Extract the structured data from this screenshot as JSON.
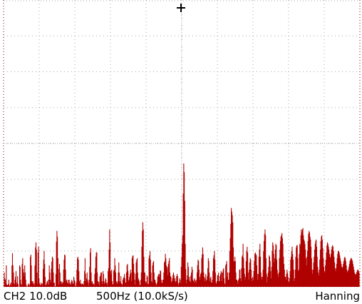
{
  "status_bar": {
    "channel_scale": "CH2 10.0dB",
    "span_rate": "500Hz (10.0kS/s)",
    "window": "Hanning"
  },
  "colors": {
    "background": "#ffffff",
    "grid": "#a8a8a8",
    "spectrum": "#b00000",
    "trigger_marker": "#000000"
  },
  "trigger_marker_icon": "trigger-position-cross-icon",
  "chart_data": {
    "type": "bar",
    "description_source": "FFT spectrum display",
    "values": [
      20,
      12,
      10,
      5,
      30,
      3,
      2,
      3,
      4,
      10,
      2,
      1,
      4,
      6,
      2,
      30,
      47,
      30,
      20,
      5,
      3,
      10,
      14,
      22,
      3,
      6,
      15,
      4,
      0,
      0,
      30,
      28,
      10,
      4,
      2,
      32,
      40,
      25,
      20,
      15,
      30,
      20,
      10,
      3,
      0,
      0,
      2,
      5,
      3,
      0,
      4,
      42,
      45,
      30,
      8,
      6,
      8,
      3,
      5,
      2,
      30,
      55,
      62,
      52,
      20,
      4,
      48,
      56,
      12,
      5,
      2,
      3,
      6,
      4,
      2,
      5,
      25,
      38,
      50,
      32,
      14,
      3,
      2,
      6,
      8,
      4,
      10,
      3,
      30,
      20,
      10,
      6,
      25,
      35,
      42,
      40,
      20,
      5,
      6,
      0,
      1,
      18,
      63,
      78,
      70,
      40,
      25,
      3,
      32,
      20,
      6,
      8,
      4,
      7,
      4,
      6,
      24,
      38,
      45,
      44,
      24,
      8,
      10,
      6,
      5,
      10,
      4,
      10,
      6,
      4,
      3,
      7,
      10,
      8,
      4,
      5,
      14,
      10,
      8,
      2,
      0,
      6,
      24,
      40,
      42,
      38,
      22,
      8,
      5,
      10,
      4,
      3,
      5,
      4,
      4,
      2,
      8,
      22,
      40,
      18,
      8,
      12,
      20,
      10,
      6,
      2,
      10,
      28,
      48,
      54,
      20,
      6,
      8,
      3,
      5,
      4,
      2,
      18,
      26,
      42,
      48,
      48,
      20,
      8,
      4,
      7,
      2,
      14,
      16,
      20,
      20,
      8,
      4,
      22,
      18,
      8,
      4,
      6,
      12,
      10,
      5,
      2,
      6,
      22,
      26,
      52,
      80,
      62,
      22,
      18,
      24,
      8,
      3,
      4,
      22,
      24,
      40,
      30,
      20,
      8,
      6,
      4,
      8,
      20,
      34,
      20,
      8,
      5,
      15,
      5,
      4,
      2,
      10,
      12,
      14,
      18,
      12,
      6,
      6,
      20,
      30,
      32,
      22,
      8,
      10,
      14,
      18,
      24,
      20,
      8,
      40,
      43,
      44,
      32,
      20,
      10,
      3,
      18,
      34,
      38,
      40,
      20,
      12,
      10,
      8,
      2,
      3,
      10,
      20,
      56,
      78,
      90,
      80,
      42,
      20,
      20,
      8,
      5,
      6,
      16,
      14,
      4,
      4,
      40,
      44,
      50,
      38,
      20,
      8,
      6,
      30,
      34,
      36,
      20,
      10,
      10,
      6,
      2,
      4,
      6,
      14,
      16,
      18,
      14,
      18,
      23,
      22,
      10,
      5,
      6,
      10,
      10,
      20,
      34,
      36,
      46,
      40,
      30,
      25,
      28,
      16,
      32,
      36,
      40,
      20,
      15,
      14,
      6,
      8,
      12,
      17,
      20,
      16,
      8,
      12,
      6,
      8,
      15,
      18,
      15,
      5,
      2,
      6,
      12,
      10,
      5,
      28,
      42,
      60,
      72,
      130,
      172,
      160,
      120,
      60,
      25,
      5,
      10,
      16,
      34,
      28,
      10,
      14,
      8,
      6,
      16,
      20,
      28,
      24,
      10,
      8,
      6,
      12,
      10,
      8,
      5,
      10,
      20,
      30,
      38,
      36,
      24,
      14,
      10,
      18,
      20,
      40,
      45,
      55,
      46,
      20,
      14,
      8,
      12,
      18,
      8,
      10,
      15,
      26,
      40,
      36,
      20,
      8,
      12,
      14,
      6,
      6,
      10,
      22,
      40,
      44,
      50,
      38,
      20,
      6,
      4,
      8,
      16,
      16,
      20,
      8,
      8,
      15,
      18,
      22,
      20,
      8,
      20,
      24,
      26,
      12,
      5,
      3,
      30,
      32,
      36,
      14,
      20,
      10,
      10,
      20,
      50,
      68,
      88,
      110,
      105,
      100,
      90,
      55,
      35,
      36,
      42,
      36,
      20,
      10,
      10,
      8,
      4,
      10,
      12,
      24,
      24,
      12,
      8,
      26,
      42,
      44,
      60,
      40,
      26,
      18,
      10,
      14,
      36,
      50,
      56,
      48,
      20,
      10,
      24,
      34,
      40,
      38,
      24,
      12,
      8,
      14,
      10,
      22,
      36,
      46,
      48,
      46,
      44,
      30,
      18,
      10,
      18,
      42,
      52,
      60,
      42,
      20,
      14,
      10,
      14,
      24,
      50,
      64,
      74,
      80,
      72,
      40,
      18,
      6,
      14,
      20,
      28,
      44,
      42,
      36,
      22,
      12,
      28,
      50,
      62,
      58,
      46,
      34,
      40,
      52,
      60,
      58,
      38,
      24,
      18,
      14,
      20,
      40,
      52,
      64,
      70,
      72,
      75,
      68,
      60,
      42,
      32,
      24,
      14,
      14,
      10,
      18,
      24,
      20,
      14,
      8,
      6,
      12,
      22,
      38,
      42,
      50,
      56,
      46,
      38,
      24,
      8,
      12,
      24,
      42,
      55,
      58,
      58,
      40,
      22,
      24,
      46,
      60,
      58,
      72,
      80,
      76,
      80,
      82,
      72,
      66,
      64,
      60,
      52,
      40,
      30,
      42,
      50,
      64,
      74,
      78,
      76,
      70,
      66,
      56,
      40,
      24,
      18,
      24,
      34,
      42,
      52,
      60,
      64,
      66,
      56,
      42,
      28,
      20,
      16,
      24,
      38,
      52,
      64,
      70,
      72,
      66,
      54,
      40,
      28,
      20,
      22,
      30,
      38,
      48,
      58,
      62,
      60,
      56,
      52,
      46,
      42,
      40,
      46,
      52,
      56,
      58,
      56,
      50,
      42,
      34,
      26,
      22,
      26,
      32,
      40,
      46,
      50,
      50,
      48,
      44,
      40,
      36,
      32,
      28,
      26,
      28,
      32,
      36,
      40,
      42,
      40,
      36,
      30,
      24,
      20,
      22,
      24,
      28,
      32,
      36,
      38,
      40,
      40,
      38,
      36,
      32,
      28,
      24,
      20,
      18,
      16,
      18,
      20,
      22,
      24,
      24,
      22,
      20
    ]
  }
}
